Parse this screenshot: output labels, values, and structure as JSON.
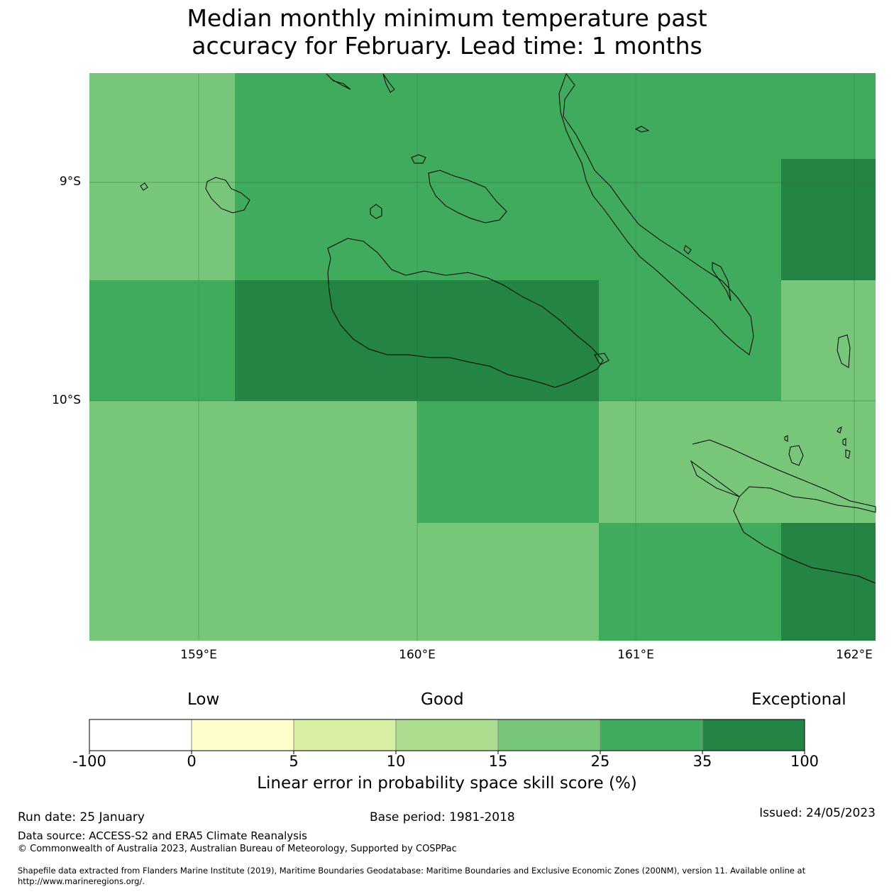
{
  "title": {
    "line1": "Median monthly minimum temperature past",
    "line2": "accuracy for February. Lead time: 1 months"
  },
  "map": {
    "lat_ticks": [
      "9°S",
      "10°S"
    ],
    "lon_ticks": [
      "159°E",
      "160°E",
      "161°E",
      "162°E"
    ],
    "cell_scores_percent": [
      [
        20,
        30,
        30,
        30,
        30,
        30,
        30,
        30
      ],
      [
        20,
        30,
        30,
        30,
        30,
        30,
        30,
        40
      ],
      [
        30,
        40,
        40,
        40,
        30,
        30,
        30,
        20
      ],
      [
        20,
        20,
        20,
        30,
        30,
        20,
        20,
        20
      ],
      [
        20,
        20,
        20,
        20,
        20,
        30,
        30,
        40
      ]
    ],
    "colors": [
      "#ffffff",
      "#ffffcc",
      "#d9f0a3",
      "#addd8e",
      "#78c679",
      "#41ab5d",
      "#238443"
    ]
  },
  "legend": {
    "categories": [
      "Low",
      "Good",
      "Exceptional"
    ],
    "ticks": [
      "-100",
      "0",
      "5",
      "10",
      "15",
      "25",
      "35",
      "100"
    ],
    "label": "Linear error in probability space skill score (%)"
  },
  "footer": {
    "run_date": "Run date: 25 January",
    "base_period": "Base period: 1981-2018",
    "issued": "Issued: 24/05/2023",
    "data_source": "Data source: ACCESS-S2 and ERA5 Climate Reanalysis",
    "copyright": "© Commonwealth of Australia 2023, Australian Bureau of Meteorology, Supported by COSPPac",
    "shapefile_line1": "Shapefile data extracted from Flanders Marine Institute (2019), Maritime Boundaries Geodatabase: Maritime Boundaries and Exclusive Economic Zones (200NM), version 11. Available online at",
    "shapefile_line2": "http://www.marineregions.org/."
  }
}
